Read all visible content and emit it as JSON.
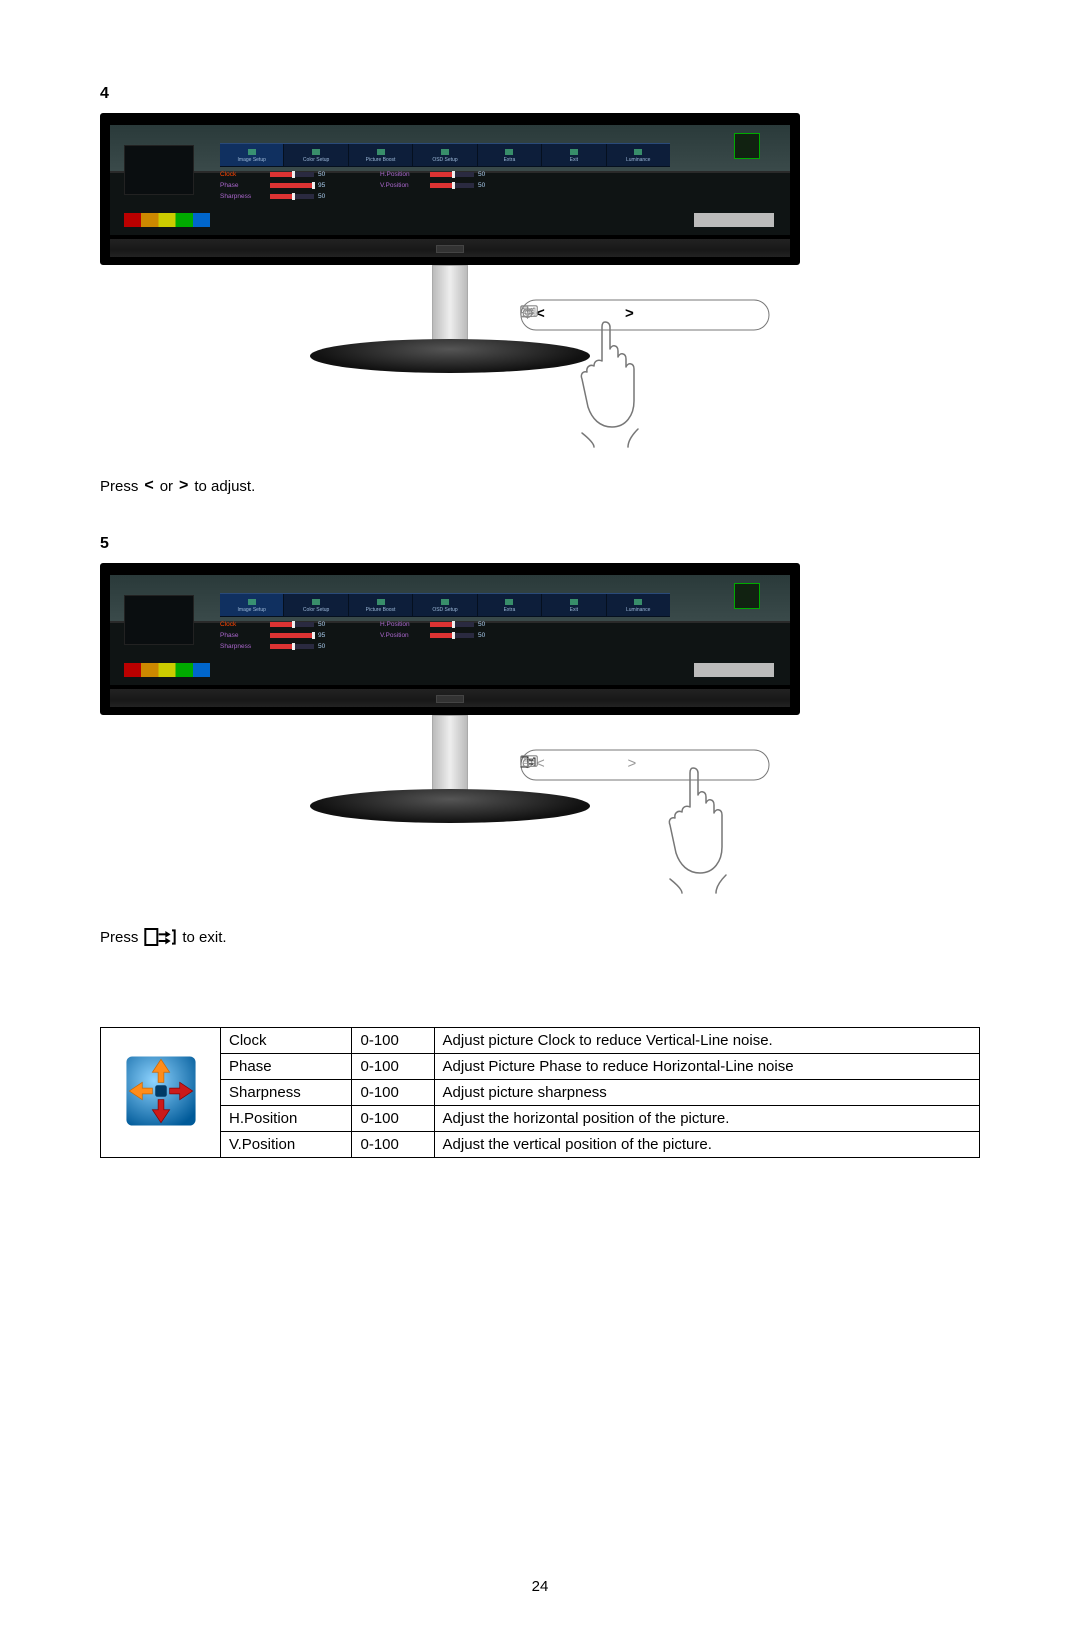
{
  "steps": {
    "step4": {
      "number": "4",
      "caption_prefix": "Press ",
      "caption_mid": " or ",
      "caption_suffix": " to adjust.",
      "osd_tabs": [
        {
          "label": "Image Setup",
          "selected": true
        },
        {
          "label": "Color Setup"
        },
        {
          "label": "Picture Boost"
        },
        {
          "label": "OSD Setup"
        },
        {
          "label": "Extra"
        },
        {
          "label": "Exit"
        },
        {
          "label": "Luminance"
        }
      ],
      "osd_rows": [
        {
          "label": "Clock",
          "value": 50,
          "selected": true
        },
        {
          "label": "H.Position",
          "value": 50
        },
        {
          "label": "Phase",
          "value": 95
        },
        {
          "label": "V.Position",
          "value": 50
        },
        {
          "label": "Sharpness",
          "value": 50
        }
      ],
      "controls": {
        "highlight": "arrows"
      }
    },
    "step5": {
      "number": "5",
      "caption_prefix": "Press ",
      "caption_suffix": " to exit.",
      "osd_tabs": [
        {
          "label": "Image Setup",
          "selected": true
        },
        {
          "label": "Color Setup"
        },
        {
          "label": "Picture Boost"
        },
        {
          "label": "OSD Setup"
        },
        {
          "label": "Extra"
        },
        {
          "label": "Exit"
        },
        {
          "label": "Luminance"
        }
      ],
      "osd_rows": [
        {
          "label": "Clock",
          "value": 50,
          "selected": true
        },
        {
          "label": "H.Position",
          "value": 50
        },
        {
          "label": "Phase",
          "value": 95
        },
        {
          "label": "V.Position",
          "value": 50
        },
        {
          "label": "Sharpness",
          "value": 50
        }
      ],
      "controls": {
        "highlight": "auto"
      }
    }
  },
  "settings_table": {
    "columns_widths": [
      "120px",
      "120px",
      "120px",
      "auto"
    ],
    "rows": [
      {
        "name": "Clock",
        "range": "0-100",
        "desc": "Adjust picture Clock to reduce Vertical-Line noise."
      },
      {
        "name": "Phase",
        "range": "0-100",
        "desc": "Adjust Picture Phase to reduce Horizontal-Line noise"
      },
      {
        "name": "Sharpness",
        "range": "0-100",
        "desc": "Adjust picture sharpness"
      },
      {
        "name": "H.Position",
        "range": "0-100",
        "desc": "Adjust the horizontal position of the picture."
      },
      {
        "name": "V.Position",
        "range": "0-100",
        "desc": "Adjust the vertical position of the picture."
      }
    ],
    "icon_colors": {
      "bg_light": "#6ec6ff",
      "bg_dark": "#006bb3",
      "arrow_up": "#ff8c00",
      "arrow_down": "#cc0000",
      "arrow_left": "#ff8c00",
      "arrow_right": "#cc0000",
      "center": "#004a80"
    }
  },
  "page_number": "24"
}
